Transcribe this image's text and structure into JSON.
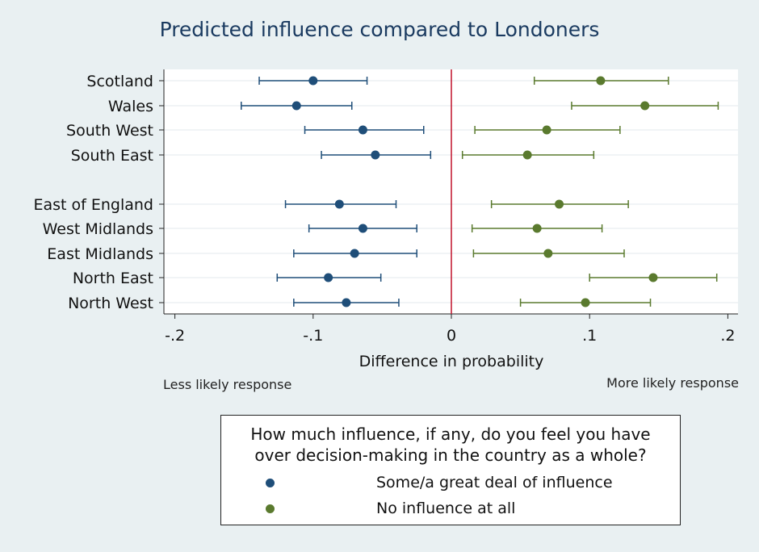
{
  "chart_data": {
    "type": "scatter",
    "title": "Predicted influence compared to Londoners",
    "xlabel": "Difference in probability",
    "xlim": [
      -0.2,
      0.2
    ],
    "xticks": [
      {
        "value": -0.2,
        "label": "-.2"
      },
      {
        "value": -0.1,
        "label": "-.1"
      },
      {
        "value": 0,
        "label": "0"
      },
      {
        "value": 0.1,
        "label": ".1"
      },
      {
        "value": 0.2,
        "label": ".2"
      }
    ],
    "categories": [
      "Scotland",
      "Wales",
      "South West",
      "South East",
      "East of England",
      "West Midlands",
      "East Midlands",
      "North East",
      "North West"
    ],
    "series": [
      {
        "name": "Some/a great deal of influence",
        "color": "#1f4e79",
        "values": [
          -0.1,
          -0.112,
          -0.064,
          -0.055,
          -0.081,
          -0.064,
          -0.07,
          -0.089,
          -0.076
        ],
        "lower": [
          -0.139,
          -0.152,
          -0.106,
          -0.094,
          -0.12,
          -0.103,
          -0.114,
          -0.126,
          -0.114
        ],
        "upper": [
          -0.061,
          -0.072,
          -0.02,
          -0.015,
          -0.04,
          -0.025,
          -0.025,
          -0.051,
          -0.038
        ]
      },
      {
        "name": "No influence at all",
        "color": "#5a7a2e",
        "values": [
          0.108,
          0.14,
          0.069,
          0.055,
          0.078,
          0.062,
          0.07,
          0.146,
          0.097
        ],
        "lower": [
          0.06,
          0.087,
          0.017,
          0.008,
          0.029,
          0.015,
          0.016,
          0.1,
          0.05
        ],
        "upper": [
          0.157,
          0.193,
          0.122,
          0.103,
          0.128,
          0.109,
          0.125,
          0.192,
          0.144
        ]
      }
    ],
    "reference_line": {
      "x": 0,
      "color": "#c0102a"
    },
    "grid": true,
    "annotations": {
      "left": "Less likely response",
      "right": "More likely response"
    },
    "legend": {
      "title": "How much influence, if any, do you feel you have over decision-making in the country as a whole?",
      "placement": "bottom-center"
    }
  }
}
